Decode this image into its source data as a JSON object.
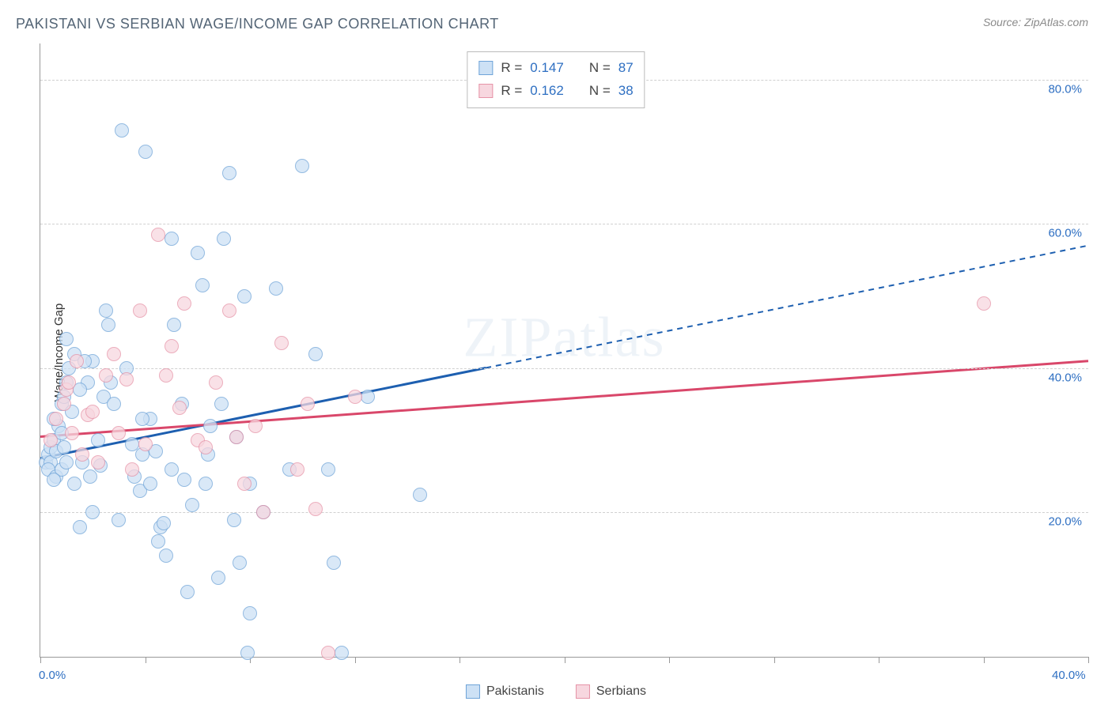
{
  "title": "PAKISTANI VS SERBIAN WAGE/INCOME GAP CORRELATION CHART",
  "source": "Source: ZipAtlas.com",
  "ylabel": "Wage/Income Gap",
  "watermark": {
    "part1": "ZIP",
    "part2": "atlas"
  },
  "chart": {
    "type": "scatter",
    "xlim": [
      0,
      40
    ],
    "ylim": [
      0,
      85
    ],
    "x_ticks": [
      0,
      4,
      8,
      12,
      16,
      20,
      24,
      28,
      32,
      36,
      40
    ],
    "x_tick_labels": {
      "0": "0.0%",
      "40": "40.0%"
    },
    "y_ticks": [
      20,
      40,
      60,
      80
    ],
    "y_tick_labels": [
      "20.0%",
      "40.0%",
      "60.0%",
      "80.0%"
    ],
    "grid_color": "#d0d0d0",
    "background_color": "#ffffff",
    "marker_size": 18,
    "axis_color": "#999999"
  },
  "series": [
    {
      "name": "Pakistanis",
      "fill_color": "#cde1f5",
      "stroke_color": "#6fa4d8",
      "line_color": "#1d5fb0",
      "r_value": "0.147",
      "n_value": "87",
      "trend": {
        "x1": 0,
        "y1": 27.5,
        "x2": 40,
        "y2": 57,
        "solid_until_x": 17
      },
      "points": [
        [
          0.2,
          27
        ],
        [
          0.3,
          28
        ],
        [
          0.4,
          29
        ],
        [
          0.5,
          30
        ],
        [
          0.4,
          27
        ],
        [
          0.6,
          28.5
        ],
        [
          0.3,
          26
        ],
        [
          0.7,
          32
        ],
        [
          0.8,
          35
        ],
        [
          0.5,
          33
        ],
        [
          0.9,
          36
        ],
        [
          1.0,
          38
        ],
        [
          1.1,
          40
        ],
        [
          0.6,
          25
        ],
        [
          0.8,
          26
        ],
        [
          1.2,
          34
        ],
        [
          1.3,
          42
        ],
        [
          1.0,
          44
        ],
        [
          1.8,
          38
        ],
        [
          1.5,
          37
        ],
        [
          1.6,
          27
        ],
        [
          1.9,
          25
        ],
        [
          2.0,
          41
        ],
        [
          2.4,
          36
        ],
        [
          2.5,
          48
        ],
        [
          2.6,
          46
        ],
        [
          2.8,
          35
        ],
        [
          2.2,
          30
        ],
        [
          3.1,
          73
        ],
        [
          3.5,
          29.5
        ],
        [
          3.6,
          25
        ],
        [
          3.8,
          23
        ],
        [
          3.9,
          28
        ],
        [
          4.0,
          70
        ],
        [
          4.2,
          33
        ],
        [
          4.4,
          28.5
        ],
        [
          4.5,
          16
        ],
        [
          4.6,
          18
        ],
        [
          4.7,
          18.5
        ],
        [
          4.8,
          14
        ],
        [
          5.0,
          58
        ],
        [
          5.1,
          46
        ],
        [
          5.4,
          35
        ],
        [
          5.6,
          9
        ],
        [
          5.5,
          24.5
        ],
        [
          6.0,
          56
        ],
        [
          6.2,
          51.5
        ],
        [
          6.4,
          28
        ],
        [
          6.5,
          32
        ],
        [
          6.8,
          11
        ],
        [
          7.0,
          58
        ],
        [
          7.2,
          67
        ],
        [
          7.5,
          30.5
        ],
        [
          7.8,
          50
        ],
        [
          7.6,
          13
        ],
        [
          7.9,
          0.5
        ],
        [
          8.0,
          6
        ],
        [
          8.0,
          24
        ],
        [
          8.5,
          20
        ],
        [
          9.0,
          51
        ],
        [
          9.5,
          26
        ],
        [
          10.0,
          68
        ],
        [
          10.5,
          42
        ],
        [
          11.0,
          26
        ],
        [
          11.2,
          13
        ],
        [
          11.5,
          0.5
        ],
        [
          12.5,
          36
        ],
        [
          14.5,
          22.5
        ],
        [
          3.0,
          19
        ],
        [
          2.0,
          20
        ],
        [
          1.5,
          18
        ],
        [
          0.8,
          31
        ],
        [
          0.9,
          29
        ],
        [
          1.0,
          27
        ],
        [
          1.3,
          24
        ],
        [
          1.7,
          41
        ],
        [
          2.3,
          26.5
        ],
        [
          2.7,
          38
        ],
        [
          3.3,
          40
        ],
        [
          3.9,
          33
        ],
        [
          4.2,
          24
        ],
        [
          5.0,
          26
        ],
        [
          5.8,
          21
        ],
        [
          6.3,
          24
        ],
        [
          6.9,
          35
        ],
        [
          7.4,
          19
        ],
        [
          0.5,
          24.5
        ]
      ]
    },
    {
      "name": "Serbians",
      "fill_color": "#f7d7df",
      "stroke_color": "#e693a7",
      "line_color": "#d9476a",
      "r_value": "0.162",
      "n_value": "38",
      "trend": {
        "x1": 0,
        "y1": 30.5,
        "x2": 40,
        "y2": 41,
        "solid_until_x": 40
      },
      "points": [
        [
          0.4,
          30
        ],
        [
          0.6,
          33
        ],
        [
          0.9,
          35
        ],
        [
          1.0,
          37
        ],
        [
          1.1,
          38
        ],
        [
          1.4,
          41
        ],
        [
          1.8,
          33.5
        ],
        [
          2.0,
          34
        ],
        [
          2.5,
          39
        ],
        [
          2.8,
          42
        ],
        [
          3.0,
          31
        ],
        [
          3.3,
          38.5
        ],
        [
          3.8,
          48
        ],
        [
          4.5,
          58.5
        ],
        [
          4.8,
          39
        ],
        [
          5.0,
          43
        ],
        [
          5.5,
          49
        ],
        [
          6.0,
          30
        ],
        [
          6.3,
          29
        ],
        [
          7.2,
          48
        ],
        [
          7.8,
          24
        ],
        [
          8.2,
          32
        ],
        [
          8.5,
          20
        ],
        [
          9.2,
          43.5
        ],
        [
          9.8,
          26
        ],
        [
          10.2,
          35
        ],
        [
          10.5,
          20.5
        ],
        [
          11.0,
          0.5
        ],
        [
          12.0,
          36
        ],
        [
          1.2,
          31
        ],
        [
          1.6,
          28
        ],
        [
          2.2,
          27
        ],
        [
          3.5,
          26
        ],
        [
          4.0,
          29.5
        ],
        [
          5.3,
          34.5
        ],
        [
          6.7,
          38
        ],
        [
          7.5,
          30.5
        ],
        [
          36.0,
          49
        ]
      ]
    }
  ],
  "legend": {
    "stats_prefix_r": "R =",
    "stats_prefix_n": "N =",
    "items": [
      "Pakistanis",
      "Serbians"
    ]
  }
}
